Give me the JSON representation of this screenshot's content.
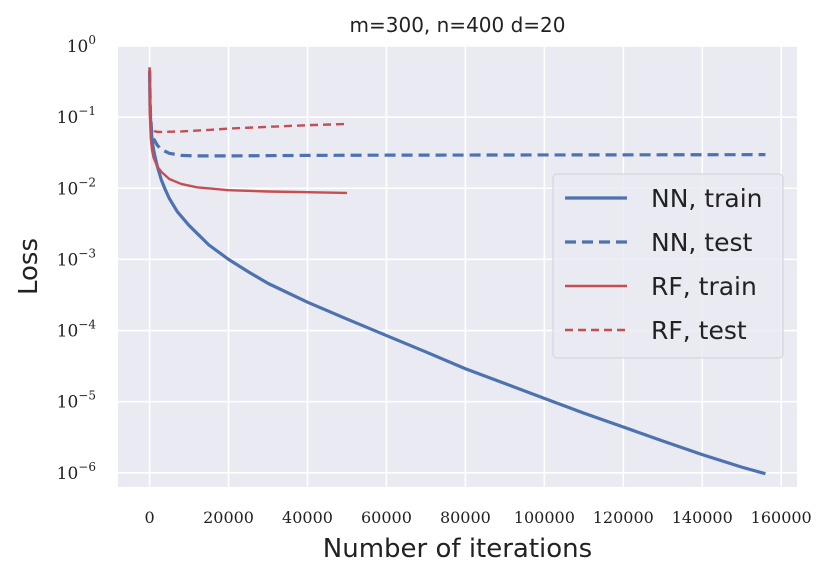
{
  "chart_data": {
    "type": "line",
    "title": "m=300, n=400 d=20",
    "xlabel": "Number of iterations",
    "ylabel": "Loss",
    "yscale": "log",
    "xlim": [
      -8000,
      164000
    ],
    "ylim_exp": [
      -6.2,
      0
    ],
    "x_ticks": [
      0,
      20000,
      40000,
      60000,
      80000,
      100000,
      120000,
      140000,
      160000
    ],
    "x_tick_labels": [
      "0",
      "20000",
      "40000",
      "60000",
      "80000",
      "100000",
      "120000",
      "140000",
      "160000"
    ],
    "y_ticks_exp": [
      0,
      -1,
      -2,
      -3,
      -4,
      -5,
      -6
    ],
    "y_tick_base": "10",
    "grid": true,
    "legend_position": "center-right",
    "series": [
      {
        "name": "NN, train",
        "color": "#4c72b0",
        "style": "solid",
        "x": [
          0,
          100,
          300,
          600,
          1000,
          1500,
          2000,
          3000,
          4000,
          5000,
          7000,
          10000,
          15000,
          20000,
          25000,
          30000,
          40000,
          50000,
          60000,
          70000,
          80000,
          90000,
          100000,
          110000,
          120000,
          130000,
          140000,
          150000,
          156000
        ],
        "y": [
          0.45,
          0.15,
          0.08,
          0.05,
          0.035,
          0.026,
          0.02,
          0.013,
          0.0095,
          0.0072,
          0.0047,
          0.003,
          0.0016,
          0.001,
          0.00067,
          0.00046,
          0.00025,
          0.000145,
          8.5e-05,
          5e-05,
          2.9e-05,
          1.8e-05,
          1.11e-05,
          6.9e-06,
          4.4e-06,
          2.8e-06,
          1.8e-06,
          1.2e-06,
          9.7e-07
        ]
      },
      {
        "name": "NN, test",
        "color": "#4c72b0",
        "style": "dashed",
        "x": [
          0,
          200,
          500,
          1000,
          2000,
          3000,
          5000,
          8000,
          12000,
          20000,
          40000,
          60000,
          80000,
          100000,
          120000,
          140000,
          156000
        ],
        "y": [
          0.45,
          0.12,
          0.065,
          0.05,
          0.04,
          0.035,
          0.031,
          0.029,
          0.0285,
          0.0285,
          0.029,
          0.0292,
          0.0293,
          0.0294,
          0.0295,
          0.0296,
          0.0297
        ]
      },
      {
        "name": "RF, train",
        "color": "#c44e52",
        "style": "solid",
        "x": [
          0,
          100,
          300,
          600,
          1000,
          2000,
          3000,
          5000,
          8000,
          12000,
          20000,
          30000,
          40000,
          50000
        ],
        "y": [
          0.5,
          0.1,
          0.05,
          0.035,
          0.027,
          0.02,
          0.017,
          0.0135,
          0.0115,
          0.0103,
          0.0094,
          0.009,
          0.0088,
          0.0086
        ]
      },
      {
        "name": "RF, test",
        "color": "#c44e52",
        "style": "dashed",
        "x": [
          0,
          100,
          300,
          600,
          1000,
          2000,
          4000,
          8000,
          15000,
          20000,
          30000,
          40000,
          50000
        ],
        "y": [
          0.5,
          0.12,
          0.08,
          0.068,
          0.064,
          0.062,
          0.062,
          0.063,
          0.066,
          0.069,
          0.073,
          0.077,
          0.08
        ]
      }
    ]
  }
}
